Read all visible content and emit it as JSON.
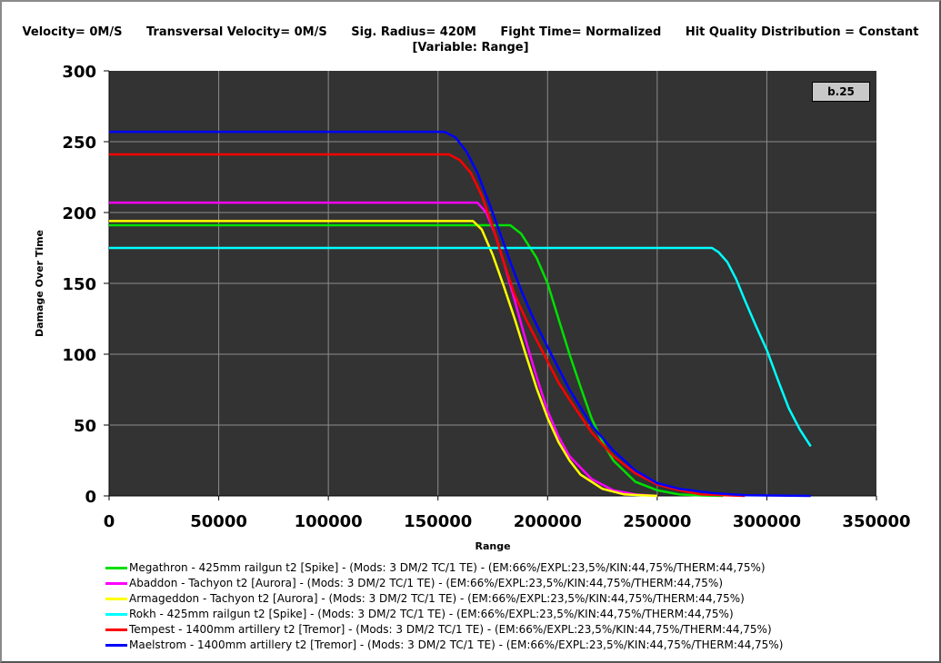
{
  "header": {
    "items": [
      "Velocity= 0M/S",
      "Transversal Velocity= 0M/S",
      "Sig. Radius= 420M",
      "Fight Time= Normalized",
      "Hit Quality Distribution = Constant"
    ],
    "subtitle": "[Variable: Range]"
  },
  "badge": "b.25",
  "chart_data": {
    "type": "line",
    "xlabel": "Range",
    "ylabel": "Damage Over Time",
    "xlim": [
      0,
      350000
    ],
    "ylim": [
      0,
      300
    ],
    "xticks": [
      0,
      50000,
      100000,
      150000,
      200000,
      250000,
      300000,
      350000
    ],
    "yticks": [
      0,
      50,
      100,
      150,
      200,
      250,
      300
    ],
    "grid": true,
    "background": "#333333",
    "legend_position": "bottom",
    "series": [
      {
        "name": "Megathron - 425mm railgun t2 [Spike] - (Mods: 3 DM/2 TC/1 TE) - (EM:66%/EXPL:23,5%/KIN:44,75%/THERM:44,75%)",
        "color": "#00e000",
        "x": [
          0,
          183000,
          188000,
          195000,
          200000,
          205000,
          210000,
          215000,
          220000,
          225000,
          230000,
          240000,
          250000,
          260000,
          270000,
          280000
        ],
        "y": [
          191,
          191,
          185,
          168,
          150,
          125,
          100,
          77,
          55,
          38,
          25,
          10,
          4,
          1,
          0.3,
          0
        ]
      },
      {
        "name": "Abaddon - Tachyon t2 [Aurora] - (Mods: 3 DM/2 TC/1 TE) - (EM:66%/EXPL:23,5%/KIN:44,75%/THERM:44,75%)",
        "color": "#ff00ff",
        "x": [
          0,
          168000,
          172000,
          176000,
          180000,
          185000,
          190000,
          195000,
          200000,
          205000,
          210000,
          220000,
          230000,
          240000,
          250000
        ],
        "y": [
          207,
          207,
          200,
          185,
          165,
          138,
          110,
          84,
          60,
          42,
          28,
          12,
          4,
          1,
          0
        ]
      },
      {
        "name": "Armageddon - Tachyon t2 [Aurora] - (Mods: 3 DM/2 TC/1 TE) - (EM:66%/EXPL:23,5%/KIN:44,75%/THERM:44,75%)",
        "color": "#ffff00",
        "x": [
          0,
          166000,
          170000,
          175000,
          180000,
          185000,
          190000,
          195000,
          200000,
          205000,
          210000,
          215000,
          225000,
          235000,
          250000
        ],
        "y": [
          194,
          194,
          188,
          170,
          148,
          125,
          100,
          76,
          55,
          38,
          25,
          15,
          5,
          1,
          0
        ]
      },
      {
        "name": "Rokh - 425mm railgun t2 [Spike] - (Mods: 3 DM/2 TC/1 TE) - (EM:66%/EXPL:23,5%/KIN:44,75%/THERM:44,75%)",
        "color": "#00ffff",
        "x": [
          0,
          275000,
          278000,
          282000,
          286000,
          290000,
          295000,
          300000,
          305000,
          310000,
          315000,
          320000
        ],
        "y": [
          175,
          175,
          172,
          165,
          153,
          138,
          120,
          103,
          82,
          62,
          47,
          35
        ]
      },
      {
        "name": "Tempest - 1400mm artillery t2 [Tremor] - (Mods: 3 DM/2 TC/1 TE) - (EM:66%/EXPL:23,5%/KIN:44,75%/THERM:44,75%)",
        "color": "#ff0000",
        "x": [
          0,
          155000,
          160000,
          165000,
          170000,
          175000,
          180000,
          185000,
          190000,
          195000,
          200000,
          205000,
          210000,
          220000,
          230000,
          240000,
          250000,
          260000,
          270000,
          290000
        ],
        "y": [
          241,
          241,
          237,
          228,
          212,
          190,
          165,
          142,
          125,
          110,
          95,
          80,
          68,
          45,
          28,
          16,
          8,
          4,
          1,
          0
        ]
      },
      {
        "name": "Maelstrom - 1400mm artillery t2 [Tremor] - (Mods: 3 DM/2 TC/1 TE) - (EM:66%/EXPL:23,5%/KIN:44,75%/THERM:44,75%)",
        "color": "#0000ff",
        "x": [
          0,
          153000,
          158000,
          163000,
          168000,
          173000,
          178000,
          183000,
          188000,
          193000,
          200000,
          210000,
          220000,
          230000,
          240000,
          250000,
          260000,
          275000,
          290000,
          320000
        ],
        "y": [
          257,
          257,
          253,
          243,
          228,
          208,
          187,
          165,
          145,
          127,
          105,
          75,
          50,
          32,
          18,
          9,
          5,
          2,
          0.5,
          0
        ]
      }
    ]
  }
}
